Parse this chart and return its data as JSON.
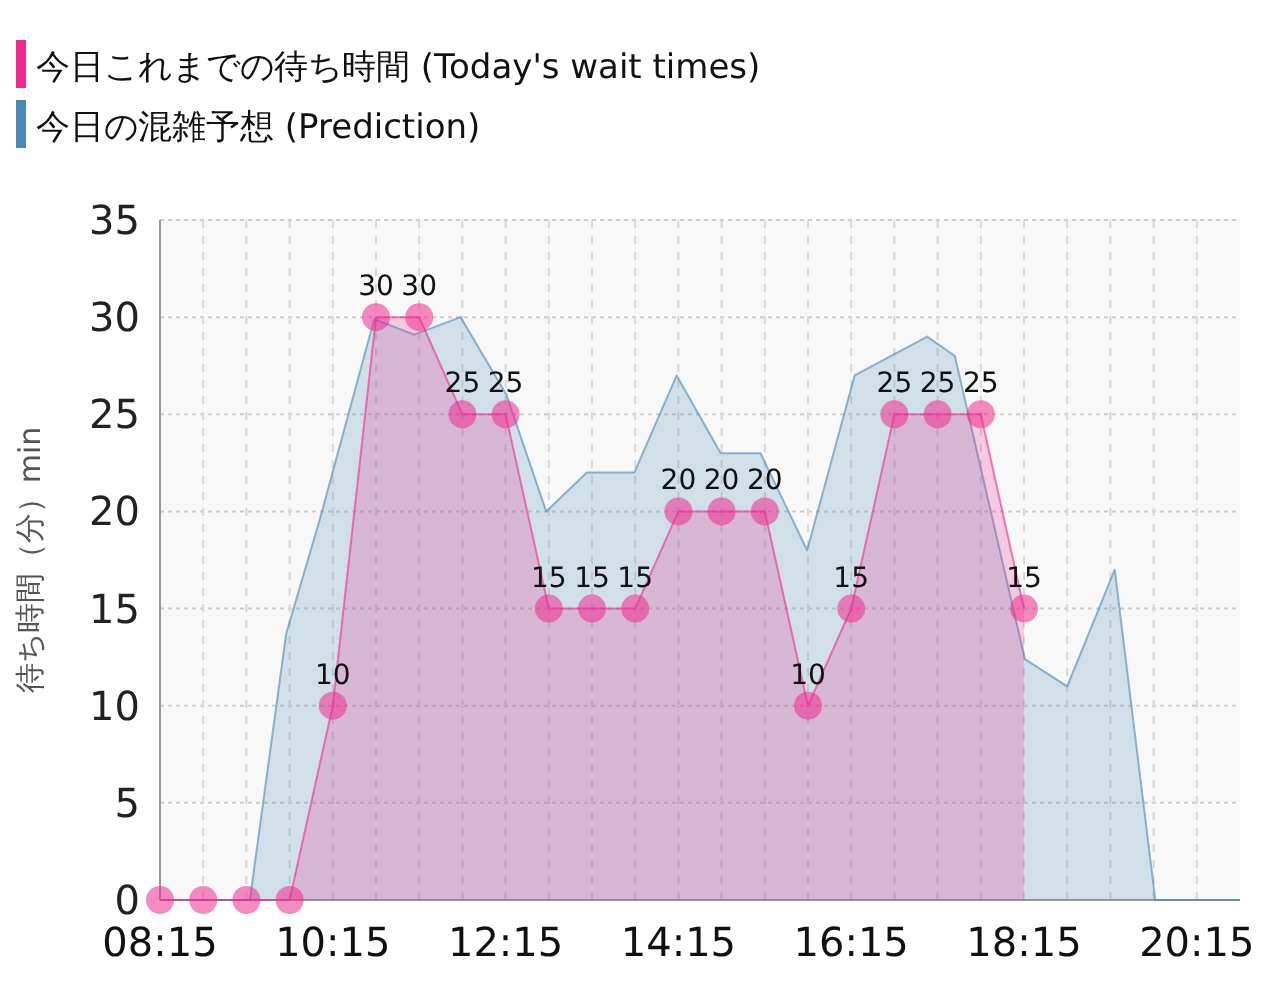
{
  "chart_data": {
    "type": "area",
    "ylabel": "待ち時間（分）min",
    "legend": "top left",
    "grid": true,
    "xlim": [
      8.25,
      20.75
    ],
    "ylim": [
      0,
      35
    ],
    "yticks": [
      0,
      5,
      10,
      15,
      20,
      25,
      30,
      35
    ],
    "xticks": [
      {
        "value": 8.25,
        "label": "08:15"
      },
      {
        "value": 8.75,
        "label": null
      },
      {
        "value": 9.25,
        "label": null
      },
      {
        "value": 9.75,
        "label": null
      },
      {
        "value": 10.25,
        "label": "10:15"
      },
      {
        "value": 10.75,
        "label": null
      },
      {
        "value": 11.25,
        "label": null
      },
      {
        "value": 11.75,
        "label": null
      },
      {
        "value": 12.25,
        "label": "12:15"
      },
      {
        "value": 12.75,
        "label": null
      },
      {
        "value": 13.25,
        "label": null
      },
      {
        "value": 13.75,
        "label": null
      },
      {
        "value": 14.25,
        "label": "14:15"
      },
      {
        "value": 14.75,
        "label": null
      },
      {
        "value": 15.25,
        "label": null
      },
      {
        "value": 15.75,
        "label": null
      },
      {
        "value": 16.25,
        "label": "16:15"
      },
      {
        "value": 16.75,
        "label": null
      },
      {
        "value": 17.25,
        "label": null
      },
      {
        "value": 17.75,
        "label": null
      },
      {
        "value": 18.25,
        "label": "18:15"
      },
      {
        "value": 18.75,
        "label": null
      },
      {
        "value": 19.25,
        "label": null
      },
      {
        "value": 19.75,
        "label": null
      },
      {
        "value": 20.25,
        "label": "20:15"
      }
    ],
    "series": [
      {
        "name": "今日の混雑予想 (Prediction)",
        "color": "#4a87b5",
        "marker": "none",
        "x": [
          8.25,
          9.29,
          9.71,
          10.1,
          10.73,
          11.19,
          11.73,
          12.26,
          12.72,
          13.19,
          13.74,
          14.23,
          14.74,
          15.2,
          15.74,
          16.29,
          17.13,
          17.45,
          18.26,
          18.75,
          19.3,
          19.77,
          20.75
        ],
        "values": [
          0,
          0,
          13.7,
          19.6,
          29.9,
          29.1,
          30,
          26,
          20,
          22,
          22,
          27,
          23,
          23,
          18,
          27,
          29,
          28,
          12.4,
          11,
          17,
          0,
          0
        ]
      },
      {
        "name": "今日これまでの待ち時間 (Today's wait times)",
        "color": "#ee2a8f",
        "marker": "circle",
        "x": [
          8.25,
          8.75,
          9.25,
          9.75,
          10.25,
          10.75,
          11.25,
          11.75,
          12.25,
          12.75,
          13.25,
          13.75,
          14.25,
          14.75,
          15.25,
          15.75,
          16.25,
          16.75,
          17.25,
          17.75,
          18.25
        ],
        "values": [
          0,
          0,
          0,
          0,
          10,
          30,
          30,
          25,
          25,
          15,
          15,
          15,
          20,
          20,
          20,
          10,
          15,
          25,
          25,
          25,
          15
        ],
        "value_labels": [
          null,
          null,
          null,
          null,
          "10",
          "30",
          "30",
          "25",
          "25",
          "15",
          "15",
          "15",
          "20",
          "20",
          "20",
          "10",
          "15",
          "25",
          "25",
          "25",
          "15"
        ]
      }
    ]
  }
}
